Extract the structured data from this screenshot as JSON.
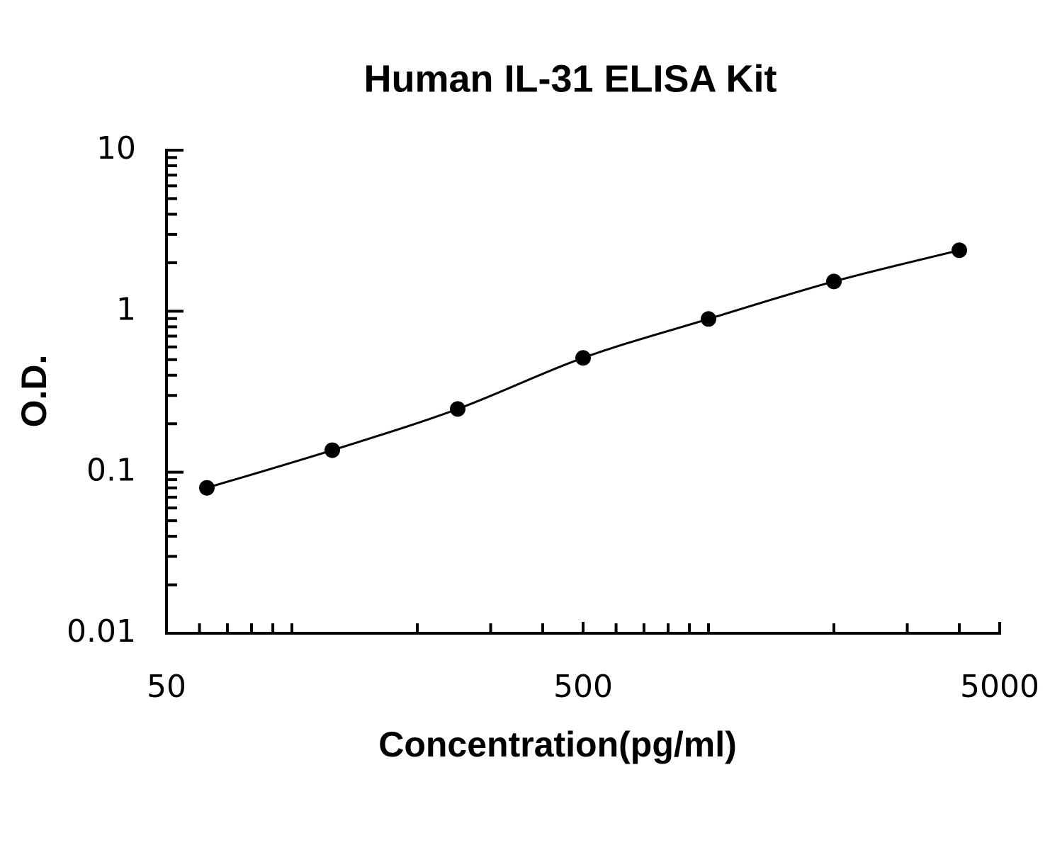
{
  "chart_data": {
    "type": "scatter",
    "title": "Human IL-31 ELISA Kit",
    "x_label": "Concentration(pg/ml)",
    "y_label": "O.D.",
    "x": [
      62.5,
      125,
      250,
      500,
      1000,
      2000,
      4000
    ],
    "y": [
      0.08,
      0.137,
      0.247,
      0.513,
      0.895,
      1.53,
      2.39
    ],
    "color": "#000000",
    "xlim": [
      50,
      5000
    ],
    "ylim": [
      0.01,
      10
    ],
    "xticks": [
      50,
      500,
      5000
    ],
    "yticks": [
      0.01,
      0.1,
      1,
      10
    ],
    "xscale": "log",
    "yscale": "log",
    "fit_curve": true,
    "minor_ticks": true
  }
}
